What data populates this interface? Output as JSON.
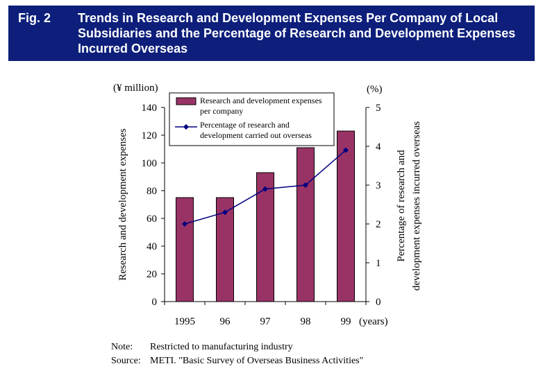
{
  "header": {
    "fig_label": "Fig. 2",
    "title": "Trends in Research and Development Expenses Per Company of Local Subsidiaries and the Percentage of Research and Development Expenses Incurred Overseas"
  },
  "chart_data": {
    "type": "bar+line",
    "categories": [
      "1995",
      "96",
      "97",
      "98",
      "99"
    ],
    "x_unit": "(years)",
    "y_left": {
      "unit": "(¥ million)",
      "label": "Research and development expenses",
      "range": [
        0,
        140
      ],
      "ticks": [
        "0",
        "20",
        "40",
        "60",
        "80",
        "100",
        "120",
        "140"
      ]
    },
    "y_right": {
      "unit": "(%)",
      "label": "Percentage of research and development expenses incurred overseas",
      "range": [
        0,
        5
      ],
      "ticks": [
        "0",
        "1",
        "2",
        "3",
        "4",
        "5"
      ]
    },
    "series": [
      {
        "name": "Research and development expenses per company",
        "kind": "bar",
        "axis": "left",
        "color": "#993366",
        "values": [
          75,
          75,
          93,
          111,
          123
        ]
      },
      {
        "name": "Percentage of research and development carried out overseas",
        "kind": "line",
        "axis": "right",
        "color": "#000080",
        "values": [
          2.0,
          2.3,
          2.9,
          3.0,
          3.9
        ]
      }
    ],
    "legend_position": "top-left inside plot",
    "grid": false
  },
  "notes": {
    "note_label": "Note:",
    "note_text": "Restricted to manufacturing industry",
    "source_label": "Source:",
    "source_text": "METI. \"Basic Survey of Overseas Business Activities\""
  }
}
